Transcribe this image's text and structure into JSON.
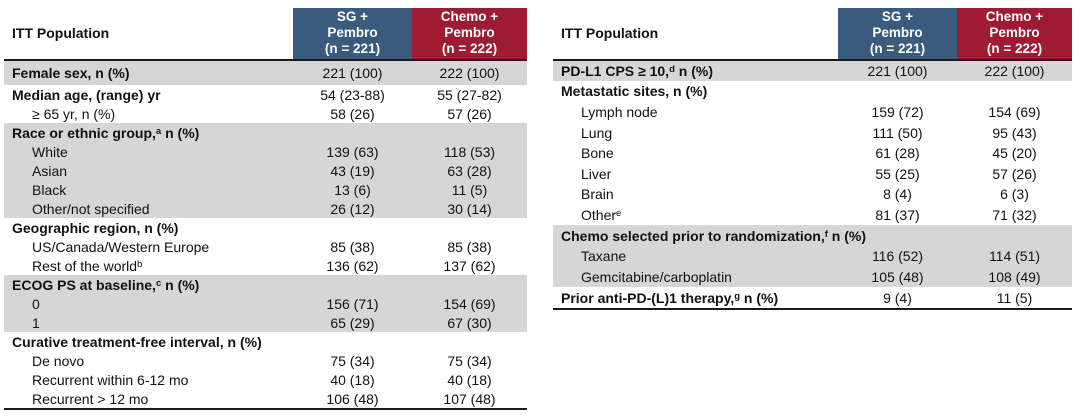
{
  "colors": {
    "sg_header_bg": "#3A5A7E",
    "chemo_header_bg": "#9E1B32",
    "header_text": "#FFFFFF",
    "row_shade": "#D6D6D6",
    "text": "#111111",
    "border": "#1A1A1A"
  },
  "tables": [
    {
      "title": "ITT Population",
      "col1": "SG +\nPembro\n(n = 221)",
      "col2": "Chemo +\nPembro\n(n = 222)",
      "rows": [
        {
          "label": "Female sex, n (%)",
          "v1": "221 (100)",
          "v2": "222 (100)",
          "bold": true,
          "shaded": true
        },
        {
          "label": "Median age, (range) yr",
          "v1": "54 (23-88)",
          "v2": "55 (27-82)",
          "bold": true
        },
        {
          "label": "≥ 65 yr, n (%)",
          "v1": "58 (26)",
          "v2": "57 (26)",
          "indent": true
        },
        {
          "label": "Race or ethnic group,",
          "sup": "a",
          "suffix": " n (%)",
          "bold": true,
          "shaded": true
        },
        {
          "label": "White",
          "v1": "139 (63)",
          "v2": "118 (53)",
          "indent": true,
          "shaded": true
        },
        {
          "label": "Asian",
          "v1": "43 (19)",
          "v2": "63 (28)",
          "indent": true,
          "shaded": true
        },
        {
          "label": "Black",
          "v1": "13 (6)",
          "v2": "11 (5)",
          "indent": true,
          "shaded": true
        },
        {
          "label": "Other/not specified",
          "v1": "26 (12)",
          "v2": "30 (14)",
          "indent": true,
          "shaded": true
        },
        {
          "label": "Geographic region, n (%)",
          "bold": true
        },
        {
          "label": "US/Canada/Western Europe",
          "v1": "85 (38)",
          "v2": "85 (38)",
          "indent": true
        },
        {
          "label": "Rest of the world",
          "sup": "b",
          "v1": "136 (62)",
          "v2": "137 (62)",
          "indent": true
        },
        {
          "label": "ECOG PS at baseline,",
          "sup": "c",
          "suffix": " n (%)",
          "bold": true,
          "shaded": true
        },
        {
          "label": "0",
          "v1": "156 (71)",
          "v2": "154 (69)",
          "indent": true,
          "shaded": true
        },
        {
          "label": "1",
          "v1": "65 (29)",
          "v2": "67 (30)",
          "indent": true,
          "shaded": true
        },
        {
          "label": "Curative treatment-free interval, n (%)",
          "bold": true
        },
        {
          "label": "De novo",
          "v1": "75 (34)",
          "v2": "75 (34)",
          "indent": true
        },
        {
          "label": "Recurrent within 6-12 mo",
          "v1": "40 (18)",
          "v2": "40 (18)",
          "indent": true
        },
        {
          "label": "Recurrent > 12 mo",
          "v1": "106 (48)",
          "v2": "107 (48)",
          "indent": true
        }
      ]
    },
    {
      "title": "ITT Population",
      "col1": "SG +\nPembro\n(n = 221)",
      "col2": "Chemo +\nPembro\n(n = 222)",
      "rows": [
        {
          "label": "PD-L1 CPS ≥ 10,",
          "sup": "d",
          "suffix": " n (%)",
          "v1": "221 (100)",
          "v2": "222 (100)",
          "bold": true,
          "shaded": true
        },
        {
          "label": "Metastatic sites, n (%)",
          "bold": true
        },
        {
          "label": "Lymph node",
          "v1": "159 (72)",
          "v2": "154 (69)",
          "indent": true
        },
        {
          "label": "Lung",
          "v1": "111 (50)",
          "v2": "95 (43)",
          "indent": true
        },
        {
          "label": "Bone",
          "v1": "61 (28)",
          "v2": "45 (20)",
          "indent": true
        },
        {
          "label": "Liver",
          "v1": "55 (25)",
          "v2": "57 (26)",
          "indent": true
        },
        {
          "label": "Brain",
          "v1": "8 (4)",
          "v2": "6 (3)",
          "indent": true
        },
        {
          "label": "Other",
          "sup": "e",
          "v1": "81 (37)",
          "v2": "71 (32)",
          "indent": true
        },
        {
          "label": "Chemo selected prior to randomization,",
          "sup": "f",
          "suffix": " n (%)",
          "bold": true,
          "shaded": true
        },
        {
          "label": "Taxane",
          "v1": "116 (52)",
          "v2": "114 (51)",
          "indent": true,
          "shaded": true
        },
        {
          "label": "Gemcitabine/carboplatin",
          "v1": "105 (48)",
          "v2": "108 (49)",
          "indent": true,
          "shaded": true
        },
        {
          "label": "Prior anti-PD-(L)1 therapy,",
          "sup": "g",
          "suffix": " n (%)",
          "v1": "9 (4)",
          "v2": "11 (5)",
          "bold": true
        }
      ]
    }
  ]
}
